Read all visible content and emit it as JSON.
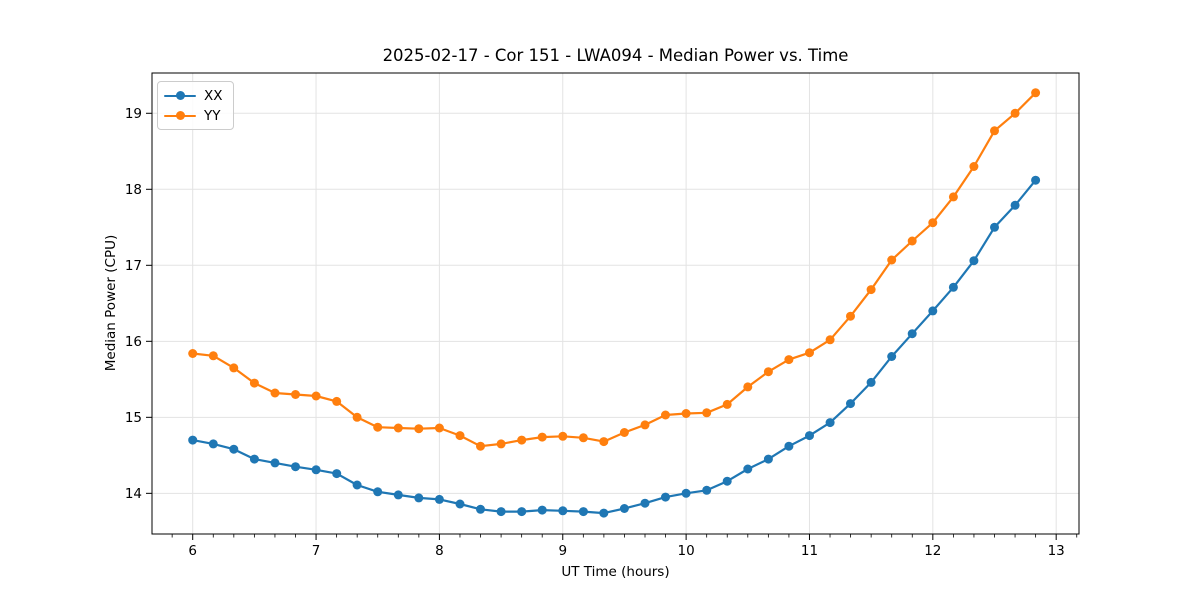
{
  "chart_data": {
    "type": "line",
    "title": "2025-02-17 - Cor 151 - LWA094 - Median Power vs. Time",
    "xlabel": "UT Time (hours)",
    "ylabel": "Median Power (CPU)",
    "xlim": [
      5.67,
      13.185
    ],
    "ylim": [
      13.465,
      19.53
    ],
    "x_ticks": [
      6,
      7,
      8,
      9,
      10,
      11,
      12,
      13
    ],
    "y_ticks": [
      14,
      15,
      16,
      17,
      18,
      19
    ],
    "x_minor_tick_step": 0.1667,
    "grid": true,
    "grid_color": "#e3e3e3",
    "spine_color": "#000000",
    "legend_position": "upper-left",
    "x": [
      6.0,
      6.167,
      6.333,
      6.5,
      6.667,
      6.833,
      7.0,
      7.167,
      7.333,
      7.5,
      7.667,
      7.833,
      8.0,
      8.167,
      8.333,
      8.5,
      8.667,
      8.833,
      9.0,
      9.167,
      9.333,
      9.5,
      9.667,
      9.833,
      10.0,
      10.167,
      10.333,
      10.5,
      10.667,
      10.833,
      11.0,
      11.167,
      11.333,
      11.5,
      11.667,
      11.833,
      12.0,
      12.167,
      12.333,
      12.5,
      12.667,
      12.833
    ],
    "series": [
      {
        "name": "XX",
        "color": "#1f77b4",
        "values": [
          14.7,
          14.65,
          14.58,
          14.45,
          14.4,
          14.35,
          14.31,
          14.26,
          14.11,
          14.02,
          13.98,
          13.94,
          13.92,
          13.86,
          13.79,
          13.76,
          13.76,
          13.78,
          13.77,
          13.76,
          13.74,
          13.8,
          13.87,
          13.95,
          14.0,
          14.04,
          14.16,
          14.32,
          14.45,
          14.62,
          14.76,
          14.93,
          15.18,
          15.46,
          15.8,
          16.1,
          16.4,
          16.71,
          17.06,
          17.5,
          17.79,
          18.12
        ]
      },
      {
        "name": "YY",
        "color": "#ff7f0e",
        "values": [
          15.84,
          15.81,
          15.65,
          15.45,
          15.32,
          15.3,
          15.28,
          15.21,
          15.0,
          14.87,
          14.86,
          14.85,
          14.86,
          14.76,
          14.62,
          14.65,
          14.7,
          14.74,
          14.75,
          14.73,
          14.68,
          14.8,
          14.9,
          15.03,
          15.05,
          15.06,
          15.17,
          15.4,
          15.6,
          15.76,
          15.85,
          16.02,
          16.33,
          16.68,
          17.07,
          17.32,
          17.56,
          17.9,
          18.3,
          18.77,
          19.0,
          19.27
        ]
      }
    ]
  }
}
